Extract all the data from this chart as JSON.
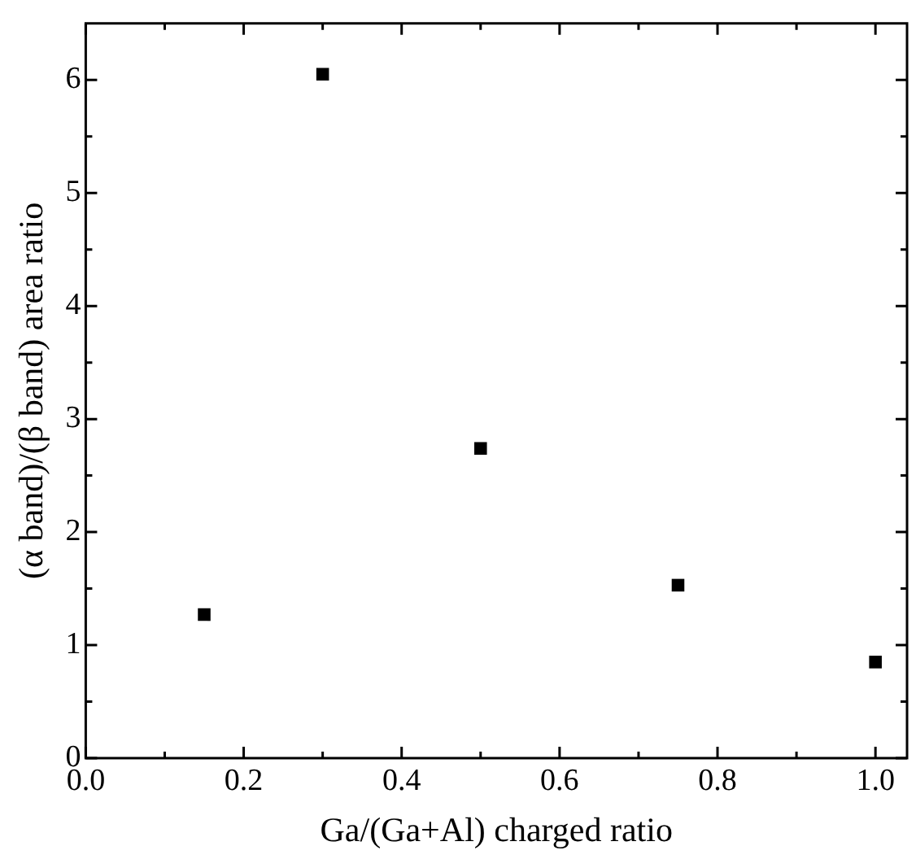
{
  "chart_data": {
    "type": "scatter",
    "xlabel": "Ga/(Ga+Al) charged ratio",
    "ylabel": "(α band)/(β band) area ratio",
    "x": [
      0.15,
      0.3,
      0.5,
      0.75,
      1.0
    ],
    "values": [
      1.27,
      6.05,
      2.74,
      1.53,
      0.85
    ],
    "color": "#000000",
    "marker": "square",
    "grid": false,
    "legend": false,
    "xlim": [
      0,
      1.04
    ],
    "ylim": [
      0,
      6.5
    ],
    "xticks": [
      {
        "value": 0,
        "label": "0.0"
      },
      {
        "value": 0.1,
        "label": null
      },
      {
        "value": 0.2,
        "label": "0.2"
      },
      {
        "value": 0.3,
        "label": null
      },
      {
        "value": 0.4,
        "label": "0.4"
      },
      {
        "value": 0.5,
        "label": null
      },
      {
        "value": 0.6,
        "label": "0.6"
      },
      {
        "value": 0.7,
        "label": null
      },
      {
        "value": 0.8,
        "label": "0.8"
      },
      {
        "value": 0.9,
        "label": null
      },
      {
        "value": 1,
        "label": "1.0"
      }
    ],
    "yticks": [
      0,
      {
        "value": 0.5,
        "label": null
      },
      1,
      {
        "value": 1.5,
        "label": null
      },
      2,
      {
        "value": 2.5,
        "label": null
      },
      3,
      {
        "value": 3.5,
        "label": null
      },
      4,
      {
        "value": 4.5,
        "label": null
      },
      5,
      {
        "value": 5.5,
        "label": null
      },
      6
    ]
  }
}
